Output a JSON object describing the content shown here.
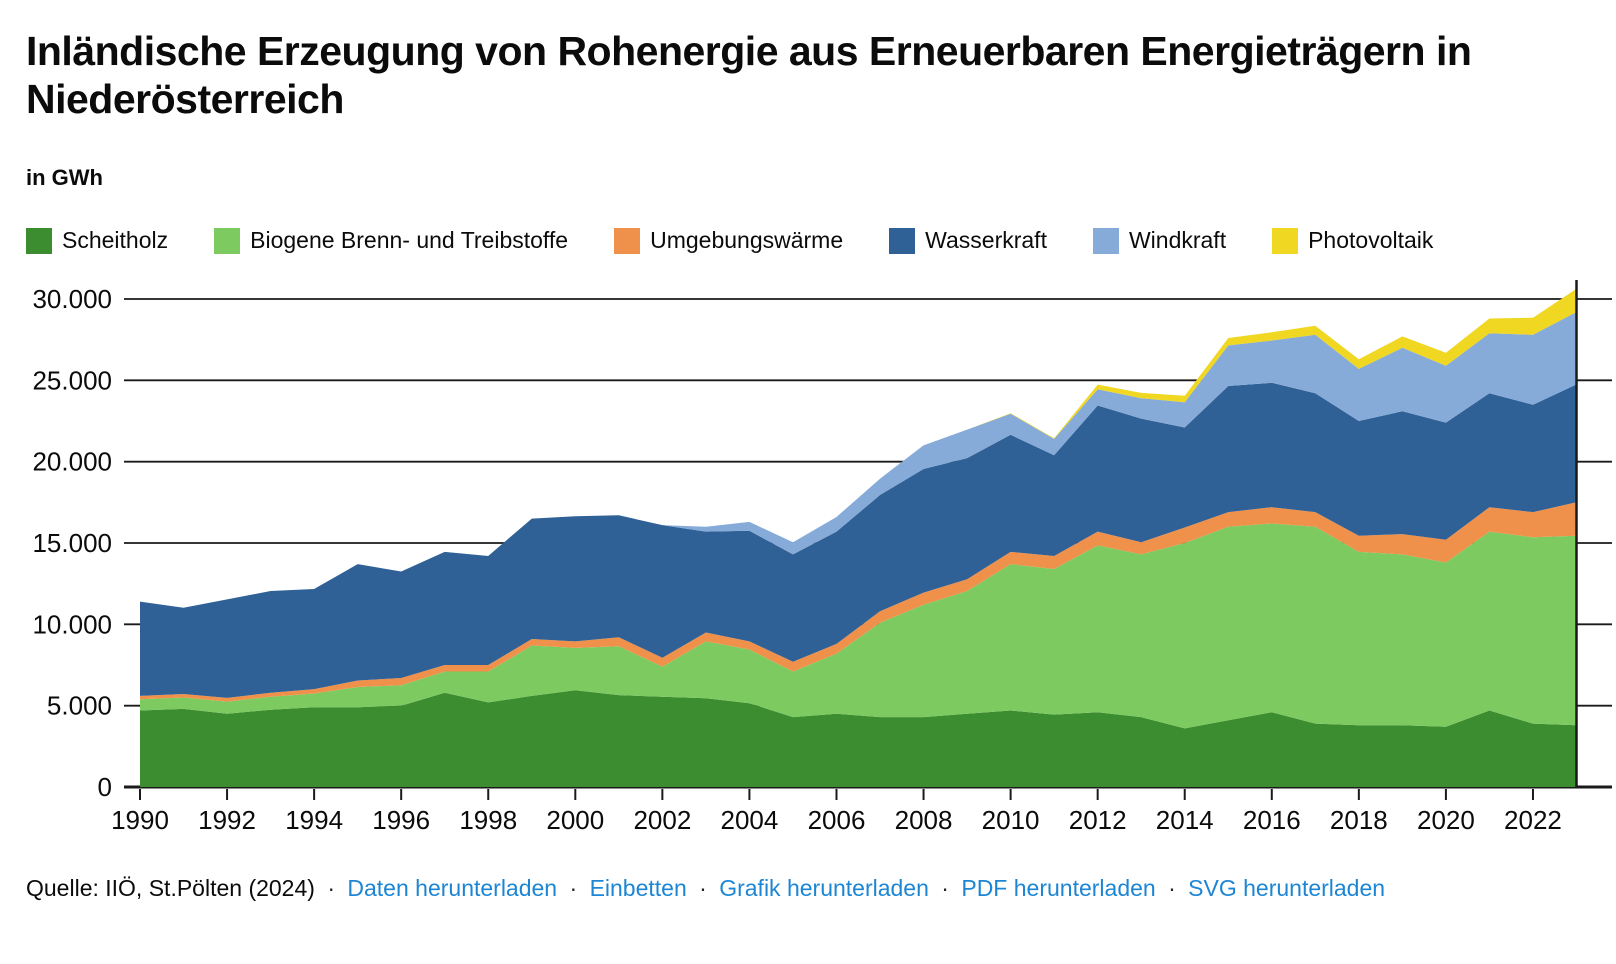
{
  "header": {
    "title": "Inländische Erzeugung von Rohenergie aus Erneuerbaren Energieträgern in Niederösterreich",
    "unit_label": "in GWh"
  },
  "legend": [
    {
      "label": "Scheitholz",
      "color": "#3c8d2f"
    },
    {
      "label": "Biogene Brenn- und Treibstoffe",
      "color": "#7dca61"
    },
    {
      "label": "Umgebungswärme",
      "color": "#f0914b"
    },
    {
      "label": "Wasserkraft",
      "color": "#2f6096"
    },
    {
      "label": "Windkraft",
      "color": "#87abd8"
    },
    {
      "label": "Photovoltaik",
      "color": "#f0d722"
    }
  ],
  "chart_data": {
    "type": "area",
    "stacked": true,
    "title": "Inländische Erzeugung von Rohenergie aus Erneuerbaren Energieträgern in Niederösterreich",
    "ylabel": "in GWh",
    "ylim": [
      0,
      30000
    ],
    "yticks": [
      0,
      5000,
      10000,
      15000,
      20000,
      25000,
      30000
    ],
    "ytick_labels": [
      "0",
      "5.000",
      "10.000",
      "15.000",
      "20.000",
      "25.000",
      "30.000"
    ],
    "x": [
      1990,
      1991,
      1992,
      1993,
      1994,
      1995,
      1996,
      1997,
      1998,
      1999,
      2000,
      2001,
      2002,
      2003,
      2004,
      2005,
      2006,
      2007,
      2008,
      2009,
      2010,
      2011,
      2012,
      2013,
      2014,
      2015,
      2016,
      2017,
      2018,
      2019,
      2020,
      2021,
      2022,
      2023
    ],
    "xticks": [
      1990,
      1992,
      1994,
      1996,
      1998,
      2000,
      2002,
      2004,
      2006,
      2008,
      2010,
      2012,
      2014,
      2016,
      2018,
      2020,
      2022
    ],
    "grid": true,
    "legend_position": "top",
    "series": [
      {
        "name": "Scheitholz",
        "color": "#3c8d2f",
        "values": [
          4700,
          4800,
          4500,
          4750,
          4900,
          4900,
          5000,
          5800,
          5200,
          5600,
          5950,
          5650,
          5550,
          5450,
          5150,
          4300,
          4500,
          4300,
          4300,
          4500,
          4700,
          4450,
          4600,
          4300,
          3600,
          4100,
          4600,
          3900,
          3800,
          3800,
          3700,
          4700,
          3900,
          3800
        ]
      },
      {
        "name": "Biogene Brenn- und Treibstoffe",
        "color": "#7dca61",
        "values": [
          700,
          700,
          750,
          800,
          850,
          1250,
          1250,
          1300,
          1900,
          3100,
          2600,
          3000,
          1850,
          3500,
          3300,
          2800,
          3700,
          5800,
          6900,
          7550,
          9000,
          8950,
          10250,
          10000,
          11400,
          11900,
          11600,
          12100,
          10650,
          10500,
          10100,
          11000,
          11450,
          11650
        ]
      },
      {
        "name": "Umgebungswärme",
        "color": "#f0914b",
        "values": [
          200,
          220,
          230,
          250,
          270,
          400,
          450,
          400,
          400,
          400,
          400,
          550,
          550,
          550,
          500,
          600,
          600,
          700,
          750,
          720,
          750,
          800,
          850,
          750,
          950,
          900,
          1000,
          900,
          1000,
          1250,
          1400,
          1500,
          1550,
          2050
        ]
      },
      {
        "name": "Wasserkraft",
        "color": "#2f6096",
        "values": [
          5800,
          5300,
          6050,
          6250,
          6150,
          7150,
          6550,
          6950,
          6700,
          7400,
          7700,
          7500,
          8150,
          6200,
          6800,
          6600,
          6900,
          7150,
          7600,
          7450,
          7200,
          6200,
          7750,
          7600,
          6150,
          7750,
          7650,
          7300,
          7050,
          7550,
          7200,
          7000,
          6600,
          7250
        ]
      },
      {
        "name": "Windkraft",
        "color": "#87abd8",
        "values": [
          0,
          0,
          0,
          0,
          0,
          0,
          0,
          0,
          0,
          0,
          0,
          0,
          0,
          300,
          550,
          750,
          900,
          1000,
          1450,
          1750,
          1300,
          1000,
          1000,
          1250,
          1550,
          2500,
          2600,
          3600,
          3200,
          3900,
          3500,
          3700,
          4300,
          4450
        ]
      },
      {
        "name": "Photovoltaik",
        "color": "#f0d722",
        "values": [
          0,
          0,
          0,
          0,
          0,
          0,
          0,
          0,
          0,
          0,
          0,
          0,
          0,
          0,
          0,
          0,
          0,
          0,
          0,
          0,
          30,
          40,
          290,
          330,
          400,
          450,
          500,
          550,
          600,
          700,
          800,
          900,
          1050,
          1430
        ]
      }
    ]
  },
  "footer": {
    "source": "Quelle: IIÖ, St.Pölten (2024)",
    "separator": "·",
    "links": [
      "Daten herunterladen",
      "Einbetten",
      "Grafik herunterladen",
      "PDF herunterladen",
      "SVG herunterladen"
    ]
  }
}
